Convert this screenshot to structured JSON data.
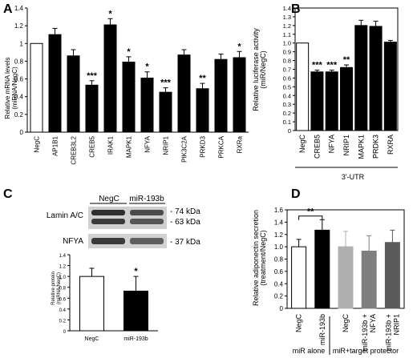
{
  "panel_labels": {
    "a": "A",
    "b": "B",
    "c": "C",
    "d": "D"
  },
  "chart_data": [
    {
      "panel": "A",
      "type": "bar",
      "ylabel": "Relative mRNA levels\n(miRNA/NegC)",
      "ylim": [
        0,
        1.4
      ],
      "yticks": [
        "0",
        "0.2",
        "0.4",
        "0.6",
        "0.8",
        "1",
        "1.2",
        "1.4"
      ],
      "categories": [
        "NegC",
        "AP1B1",
        "CREB3L2",
        "CREB5",
        "IRAK1",
        "MAPK1",
        "NFYA",
        "NRIP1",
        "PIK3C2A",
        "PRKD3",
        "PRKCA",
        "RXRa"
      ],
      "values": [
        1.0,
        1.1,
        0.86,
        0.53,
        1.21,
        0.79,
        0.61,
        0.45,
        0.87,
        0.49,
        0.82,
        0.84
      ],
      "errors": [
        0,
        0.07,
        0.07,
        0.05,
        0.07,
        0.06,
        0.07,
        0.05,
        0.06,
        0.06,
        0.06,
        0.07
      ],
      "significance": [
        "",
        "",
        "",
        "***",
        "*",
        "*",
        "*",
        "***",
        "",
        "**",
        "",
        "*"
      ],
      "colors": [
        "#ffffff",
        "#000000",
        "#000000",
        "#000000",
        "#000000",
        "#000000",
        "#000000",
        "#000000",
        "#000000",
        "#000000",
        "#000000",
        "#000000"
      ]
    },
    {
      "panel": "B",
      "type": "bar",
      "ylabel": "Relative luciferase activity\n(miR/NegC)",
      "ylim": [
        0,
        1.4
      ],
      "yticks": [
        "0",
        "0.1",
        "0.2",
        "0.3",
        "0.4",
        "0.5",
        "0.6",
        "0.7",
        "0.8",
        "0.9",
        "1.0",
        "1.1",
        "1.2",
        "1.3",
        "1.4"
      ],
      "categories": [
        "NegC",
        "CREB5",
        "NFYA",
        "NRIP1",
        "MAPK1",
        "PRDK3",
        "RXRA"
      ],
      "values": [
        1.0,
        0.67,
        0.67,
        0.72,
        1.2,
        1.19,
        1.01
      ],
      "errors": [
        0,
        0.02,
        0.02,
        0.03,
        0.06,
        0.06,
        0.02
      ],
      "significance": [
        "",
        "***",
        "***",
        "**",
        "",
        "",
        ""
      ],
      "colors": [
        "#ffffff",
        "#000000",
        "#000000",
        "#000000",
        "#000000",
        "#000000",
        "#000000"
      ],
      "group_label": "3'-UTR"
    },
    {
      "panel": "C",
      "type": "bar",
      "ylabel": "Relative protein\n(miRNA/NegC)",
      "ylim": [
        0,
        1.4
      ],
      "yticks": [
        "0",
        "0.2",
        "0.4",
        "0.6",
        "0.8",
        "1.0",
        "1.2",
        "1.4"
      ],
      "categories": [
        "NegC",
        "miR-193b"
      ],
      "values": [
        1.0,
        0.73
      ],
      "errors": [
        0.15,
        0.27
      ],
      "significance": [
        "",
        "*"
      ],
      "colors": [
        "#ffffff",
        "#000000"
      ]
    },
    {
      "panel": "D",
      "type": "bar",
      "ylabel": "Relative adiponectin secretion\n(treatment/NegC)",
      "ylim": [
        0,
        1.6
      ],
      "yticks": [
        "0",
        "0.2",
        "0.4",
        "0.6",
        "0.8",
        "1.0",
        "1.2",
        "1.4",
        "1.6"
      ],
      "categories": [
        "NegC",
        "miR-193b",
        "NegC",
        "miR-193b +\nNFYA",
        "miR-193b +\nNRIP1"
      ],
      "values": [
        1.0,
        1.27,
        1.0,
        0.93,
        1.07
      ],
      "errors": [
        0.12,
        0.17,
        0.25,
        0.25,
        0.2
      ],
      "colors": [
        "#ffffff",
        "#000000",
        "#b0b0b0",
        "#7f7f7f",
        "#5a5a5a"
      ],
      "groups": [
        "miR alone",
        "miR+target protector"
      ],
      "significance_bracket": "**"
    }
  ],
  "blot": {
    "lanes": [
      "NegC",
      "miR-193b"
    ],
    "rows": [
      {
        "label": "Lamin A/C",
        "sizes": [
          "74 kDa",
          "63 kDa"
        ]
      },
      {
        "label": "NFYA",
        "sizes": [
          "37 kDa"
        ]
      }
    ]
  }
}
